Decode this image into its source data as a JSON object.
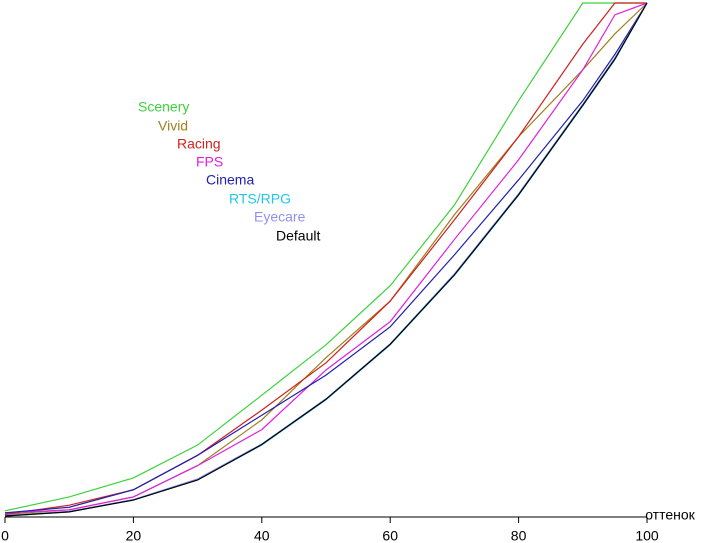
{
  "chart_data": {
    "type": "line",
    "x_label": "оттенок",
    "x": [
      0,
      10,
      20,
      30,
      40,
      50,
      60,
      70,
      80,
      90,
      95,
      100
    ],
    "xlim": [
      0,
      100
    ],
    "xticks": [
      0,
      20,
      40,
      60,
      80,
      100
    ],
    "ylim": [
      0,
      100
    ],
    "series": [
      {
        "name": "Scenery",
        "color": "#3cd23c",
        "values": [
          1.2,
          3.9,
          7.6,
          14,
          23.7,
          33.5,
          45,
          60.7,
          81,
          100,
          100,
          100
        ]
      },
      {
        "name": "Vivid",
        "color": "#a0801e",
        "values": [
          0.5,
          1.4,
          3.9,
          10,
          18.9,
          31,
          42,
          58.8,
          74,
          87,
          94,
          100
        ]
      },
      {
        "name": "Racing",
        "color": "#d02020",
        "values": [
          0.5,
          2.3,
          5.3,
          12,
          20.8,
          30,
          42,
          57.8,
          74,
          92,
          100,
          100
        ]
      },
      {
        "name": "FPS",
        "color": "#e020e0",
        "values": [
          0.8,
          1.4,
          3.9,
          10,
          17,
          28.6,
          38,
          54,
          69.5,
          87,
          97.7,
          100
        ]
      },
      {
        "name": "Cinema",
        "color": "#2020b0",
        "values": [
          0.8,
          1.9,
          5.3,
          12,
          19.8,
          27.6,
          37,
          51,
          65.6,
          81,
          90,
          100
        ]
      },
      {
        "name": "RTS/RPG",
        "color": "#20c8e6",
        "values": [
          0.2,
          1,
          3.3,
          7.2,
          14,
          22.8,
          33.5,
          47,
          62.6,
          80,
          89,
          100
        ]
      },
      {
        "name": "Eyecare",
        "color": "#9090f0",
        "values": [
          0.3,
          1.1,
          3.4,
          7.4,
          14.2,
          23,
          33.7,
          47.3,
          62.9,
          80.3,
          89.3,
          100
        ]
      },
      {
        "name": "Default",
        "color": "#000000",
        "values": [
          0.2,
          1,
          3.3,
          7.2,
          14.1,
          22.9,
          33.6,
          47.1,
          62.7,
          80.1,
          89.1,
          100
        ]
      }
    ]
  }
}
